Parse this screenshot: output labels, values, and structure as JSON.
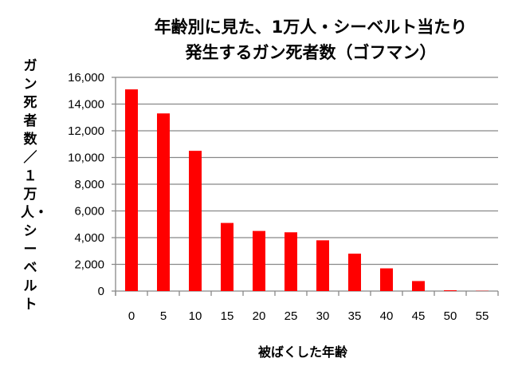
{
  "chart_data": {
    "type": "bar",
    "title_lines": [
      "年齢別に見た、1万人・シーベルト当たり",
      "発生するガン死者数（ゴフマン）"
    ],
    "xlabel": "被ばくした年齢",
    "ylabel": "ガン死者数／１万人・シーベルト",
    "categories": [
      "0",
      "5",
      "10",
      "15",
      "20",
      "25",
      "30",
      "35",
      "40",
      "45",
      "50",
      "55"
    ],
    "values": [
      15100,
      13300,
      10500,
      5100,
      4500,
      4400,
      3800,
      2800,
      1700,
      750,
      60,
      20
    ],
    "ylim": [
      0,
      16000
    ],
    "yticks": [
      "0",
      "2,000",
      "4,000",
      "6,000",
      "8,000",
      "10,000",
      "12,000",
      "14,000",
      "16,000"
    ],
    "grid": true,
    "bar_color": "#ff0000"
  }
}
